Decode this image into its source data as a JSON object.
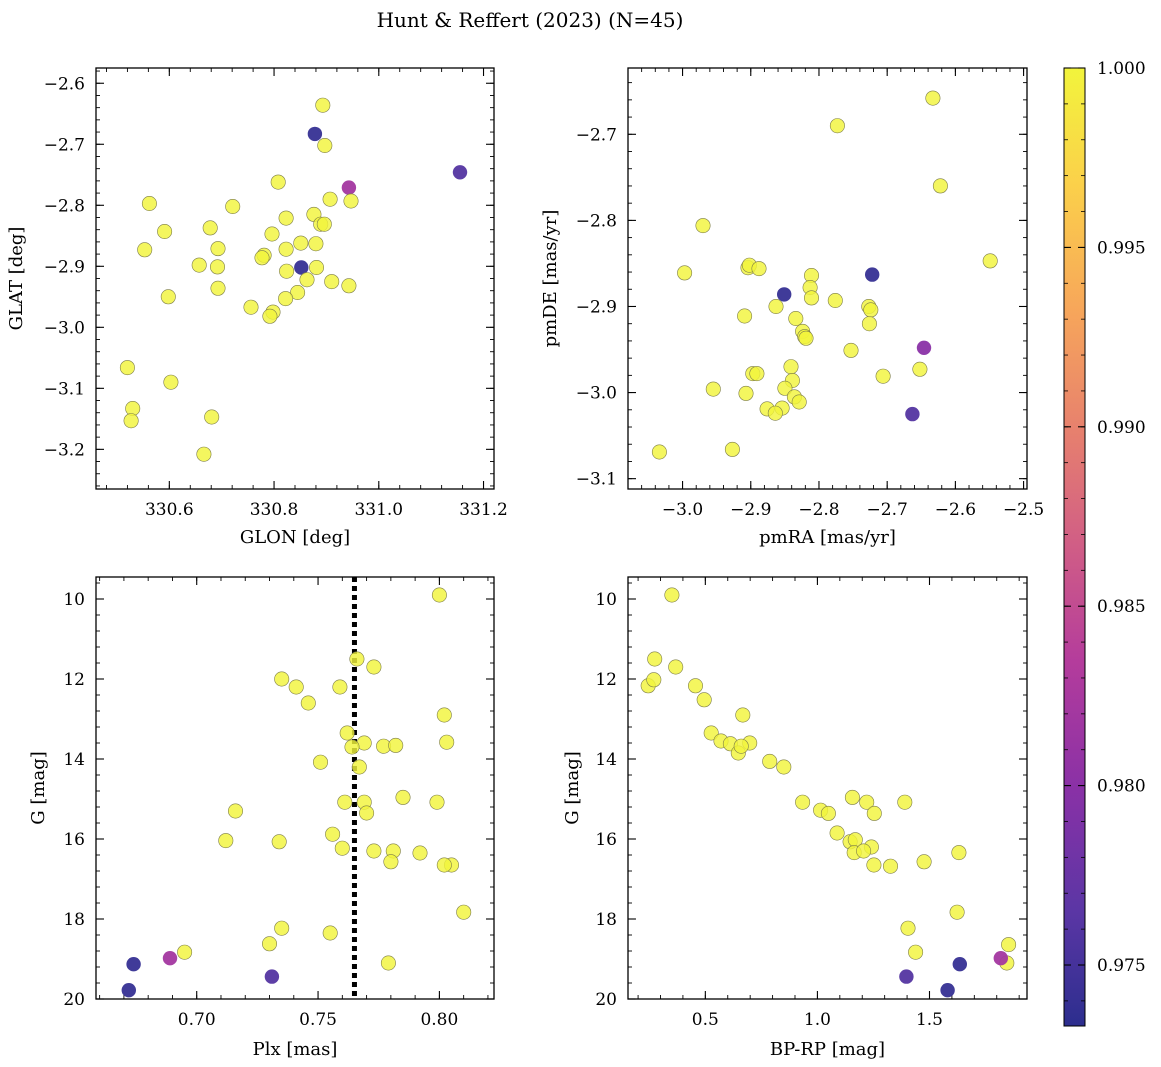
{
  "figure": {
    "title": "Hunt & Reffert (2023) (N=45)"
  },
  "colorbar": {
    "ticks": [
      "0.975",
      "0.980",
      "0.985",
      "0.990",
      "0.995",
      "1.000"
    ],
    "range": [
      0.9733,
      1.0
    ]
  },
  "chart_data": [
    {
      "type": "scatter",
      "xlabel": "GLON [deg]",
      "ylabel": "GLAT [deg]",
      "xlim": [
        330.46,
        331.22
      ],
      "ylim": [
        -3.265,
        -2.575
      ],
      "xticks": [
        330.6,
        330.8,
        331.0,
        331.2
      ],
      "xtick_labels": [
        "330.6",
        "330.8",
        "331.0",
        "331.2"
      ],
      "yticks": [
        -3.2,
        -3.1,
        -3.0,
        -2.9,
        -2.8,
        -2.7,
        -2.6
      ],
      "ytick_labels": [
        "−3.2",
        "−3.1",
        "−3.0",
        "−2.9",
        "−2.8",
        "−2.7",
        "−2.6"
      ],
      "x": [
        330.893,
        330.878,
        331.155,
        330.943,
        330.897,
        330.808,
        330.907,
        330.947,
        330.721,
        330.562,
        330.591,
        330.876,
        330.823,
        330.889,
        330.896,
        330.678,
        330.796,
        330.851,
        330.553,
        330.88,
        330.823,
        330.693,
        330.852,
        330.781,
        330.777,
        330.824,
        330.692,
        330.657,
        330.881,
        330.863,
        330.91,
        330.943,
        330.693,
        330.845,
        330.598,
        330.822,
        330.798,
        330.756,
        330.792,
        330.52,
        330.603,
        330.53,
        330.681,
        330.527,
        330.666
      ],
      "y": [
        -2.636,
        -2.683,
        -2.746,
        -2.771,
        -2.702,
        -2.762,
        -2.79,
        -2.793,
        -2.802,
        -2.797,
        -2.843,
        -2.815,
        -2.821,
        -2.831,
        -2.831,
        -2.837,
        -2.847,
        -2.862,
        -2.873,
        -2.863,
        -2.872,
        -2.871,
        -2.902,
        -2.882,
        -2.886,
        -2.908,
        -2.901,
        -2.898,
        -2.902,
        -2.922,
        -2.925,
        -2.932,
        -2.936,
        -2.943,
        -2.95,
        -2.953,
        -2.975,
        -2.967,
        -2.982,
        -3.066,
        -3.09,
        -3.133,
        -3.147,
        -3.153,
        -3.208
      ],
      "color": [
        1,
        0.974,
        0.976,
        0.982,
        1,
        1,
        1,
        1,
        1,
        1,
        1,
        1,
        1,
        1,
        1,
        1,
        1,
        1,
        1,
        1,
        1,
        1,
        0.974,
        1,
        1,
        1,
        1,
        1,
        1,
        1,
        1,
        1,
        1,
        1,
        1,
        1,
        1,
        1,
        1,
        1,
        1,
        1,
        1,
        1,
        1
      ]
    },
    {
      "type": "scatter",
      "xlabel": "pmRA [mas/yr]",
      "ylabel": "pmDE [mas/yr]",
      "xlim": [
        -3.08,
        -2.495
      ],
      "ylim": [
        -3.112,
        -2.623
      ],
      "xticks": [
        -3.0,
        -2.9,
        -2.8,
        -2.7,
        -2.6,
        -2.5
      ],
      "xtick_labels": [
        "−3.0",
        "−2.9",
        "−2.8",
        "−2.7",
        "−2.6",
        "−2.5"
      ],
      "yticks": [
        -3.1,
        -3.0,
        -2.9,
        -2.8,
        -2.7
      ],
      "ytick_labels": [
        "−3.1",
        "−3.0",
        "−2.9",
        "−2.8",
        "−2.7"
      ],
      "x": [
        -2.633,
        -2.773,
        -2.622,
        -2.97,
        -2.549,
        -2.997,
        -2.904,
        -2.902,
        -2.888,
        -2.811,
        -2.722,
        -2.851,
        -2.813,
        -2.776,
        -2.727,
        -2.863,
        -2.724,
        -2.909,
        -2.811,
        -2.834,
        -2.726,
        -2.824,
        -2.646,
        -2.821,
        -2.819,
        -2.753,
        -2.841,
        -2.652,
        -2.897,
        -2.891,
        -2.706,
        -2.839,
        -2.955,
        -2.85,
        -2.907,
        -2.836,
        -2.829,
        -2.876,
        -2.854,
        -2.864,
        -2.663,
        -2.927,
        -3.034
      ],
      "y": [
        -2.658,
        -2.69,
        -2.76,
        -2.806,
        -2.847,
        -2.861,
        -2.855,
        -2.852,
        -2.856,
        -2.864,
        -2.863,
        -2.886,
        -2.878,
        -2.893,
        -2.9,
        -2.9,
        -2.904,
        -2.911,
        -2.89,
        -2.914,
        -2.92,
        -2.929,
        -2.948,
        -2.935,
        -2.937,
        -2.951,
        -2.97,
        -2.973,
        -2.978,
        -2.978,
        -2.981,
        -2.986,
        -2.996,
        -2.995,
        -3.001,
        -3.005,
        -3.011,
        -3.019,
        -3.018,
        -3.024,
        -3.025,
        -3.066,
        -3.069
      ],
      "color": [
        1,
        1,
        1,
        1,
        1,
        1,
        1,
        1,
        1,
        1,
        0.974,
        0.974,
        1,
        1,
        1,
        1,
        1,
        1,
        1,
        1,
        1,
        1,
        0.98,
        1,
        1,
        1,
        1,
        1,
        1,
        1,
        1,
        1,
        1,
        1,
        1,
        1,
        1,
        1,
        1,
        1,
        0.976,
        1,
        1
      ]
    },
    {
      "type": "scatter",
      "xlabel": "Plx [mas]",
      "ylabel": "G [mag]",
      "xlim": [
        0.6585,
        0.8225
      ],
      "ylim": [
        20.0,
        9.45
      ],
      "y_inverted": true,
      "vline": 0.765,
      "xticks": [
        0.7,
        0.75,
        0.8
      ],
      "xtick_labels": [
        "0.70",
        "0.75",
        "0.80"
      ],
      "yticks": [
        10,
        12,
        14,
        16,
        18,
        20
      ],
      "ytick_labels": [
        "10",
        "12",
        "14",
        "16",
        "18",
        "20"
      ],
      "x": [
        0.8,
        0.766,
        0.773,
        0.735,
        0.741,
        0.759,
        0.746,
        0.802,
        0.762,
        0.777,
        0.803,
        0.769,
        0.782,
        0.764,
        0.751,
        0.767,
        0.785,
        0.716,
        0.761,
        0.769,
        0.799,
        0.77,
        0.756,
        0.712,
        0.734,
        0.76,
        0.773,
        0.781,
        0.792,
        0.805,
        0.78,
        0.802,
        0.81,
        0.735,
        0.755,
        0.73,
        0.695,
        0.779,
        0.674,
        0.689,
        0.731,
        0.672
      ],
      "y": [
        9.9,
        11.5,
        11.7,
        12.0,
        12.2,
        12.2,
        12.6,
        12.9,
        13.35,
        13.68,
        13.58,
        13.6,
        13.66,
        13.7,
        14.08,
        14.2,
        14.96,
        15.3,
        15.08,
        15.08,
        15.08,
        15.35,
        15.88,
        16.04,
        16.07,
        16.23,
        16.3,
        16.3,
        16.35,
        16.65,
        16.57,
        16.65,
        17.83,
        18.23,
        18.35,
        18.62,
        18.83,
        19.1,
        19.13,
        18.98,
        19.44,
        19.78
      ],
      "color": [
        1,
        1,
        1,
        1,
        1,
        1,
        1,
        1,
        1,
        1,
        1,
        1,
        1,
        1,
        1,
        1,
        1,
        1,
        1,
        1,
        1,
        1,
        1,
        1,
        1,
        1,
        1,
        1,
        1,
        1,
        1,
        1,
        1,
        1,
        1,
        1,
        1,
        1,
        0.974,
        0.982,
        0.976,
        0.974
      ]
    },
    {
      "type": "scatter",
      "xlabel": "BP-RP [mag]",
      "ylabel": "G [mag]",
      "xlim": [
        0.155,
        1.935
      ],
      "ylim": [
        20.0,
        9.45
      ],
      "y_inverted": true,
      "xticks": [
        0.5,
        1.0,
        1.5
      ],
      "xtick_labels": [
        "0.5",
        "1.0",
        "1.5"
      ],
      "yticks": [
        10,
        12,
        14,
        16,
        18,
        20
      ],
      "ytick_labels": [
        "10",
        "12",
        "14",
        "16",
        "18",
        "20"
      ],
      "x": [
        0.351,
        0.274,
        0.368,
        0.245,
        0.27,
        0.456,
        0.495,
        0.667,
        0.526,
        0.57,
        0.612,
        0.647,
        0.698,
        0.66,
        0.787,
        0.85,
        1.156,
        0.934,
        1.22,
        1.39,
        1.014,
        1.049,
        1.254,
        1.088,
        1.146,
        1.169,
        1.164,
        1.241,
        1.206,
        1.252,
        1.326,
        1.476,
        1.631,
        1.623,
        1.404,
        1.438,
        1.853,
        1.845,
        1.818,
        1.635,
        1.397,
        1.581
      ],
      "y": [
        9.9,
        11.5,
        11.7,
        12.17,
        12.02,
        12.17,
        12.52,
        12.9,
        13.35,
        13.55,
        13.62,
        13.85,
        13.6,
        13.68,
        14.06,
        14.2,
        14.96,
        15.08,
        15.08,
        15.08,
        15.28,
        15.36,
        15.36,
        15.85,
        16.07,
        16.02,
        16.34,
        16.2,
        16.3,
        16.65,
        16.68,
        16.57,
        16.34,
        17.83,
        18.23,
        18.83,
        18.64,
        19.1,
        18.98,
        19.13,
        19.44,
        19.78
      ],
      "color": [
        1,
        1,
        1,
        1,
        1,
        1,
        1,
        1,
        1,
        1,
        1,
        1,
        1,
        1,
        1,
        1,
        1,
        1,
        1,
        1,
        1,
        1,
        1,
        1,
        1,
        1,
        1,
        1,
        1,
        1,
        1,
        1,
        1,
        1,
        1,
        1,
        1,
        1,
        0.982,
        0.974,
        0.976,
        0.974
      ]
    }
  ]
}
